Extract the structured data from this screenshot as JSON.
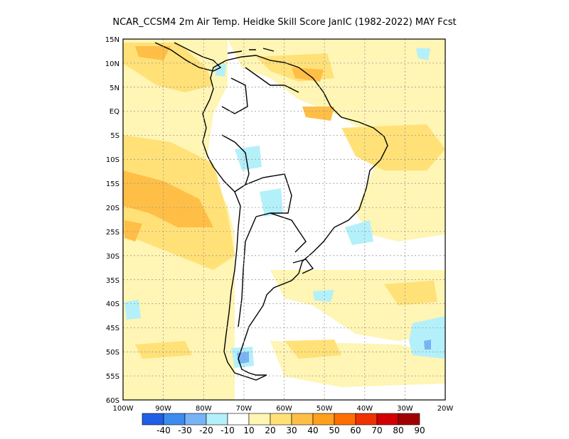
{
  "title": "NCAR_CCSM4  2m Air Temp. Heidke Skill Score JanIC (1982-2022) MAY Fcst",
  "lat_labels": [
    "15N",
    "10N",
    "5N",
    "EQ",
    "5S",
    "10S",
    "15S",
    "20S",
    "25S",
    "30S",
    "35S",
    "40S",
    "45S",
    "50S",
    "55S",
    "60S"
  ],
  "lon_labels": [
    "100W",
    "90W",
    "80W",
    "70W",
    "60W",
    "50W",
    "40W",
    "30W",
    "20W"
  ],
  "colorbar": {
    "labels": [
      "-40",
      "-30",
      "-20",
      "-10",
      "10",
      "20",
      "30",
      "40",
      "50",
      "60",
      "70",
      "80",
      "90"
    ],
    "colors": [
      "#1f5fe6",
      "#3c8cf0",
      "#78b4f5",
      "#b4f0fa",
      "#ffffff",
      "#fff5b4",
      "#ffe178",
      "#ffbe46",
      "#ffa01e",
      "#ff6e00",
      "#f03200",
      "#d20000",
      "#a00000"
    ]
  },
  "extent": {
    "lon_min": -100,
    "lon_max": -20,
    "lat_min": -60,
    "lat_max": 15
  }
}
